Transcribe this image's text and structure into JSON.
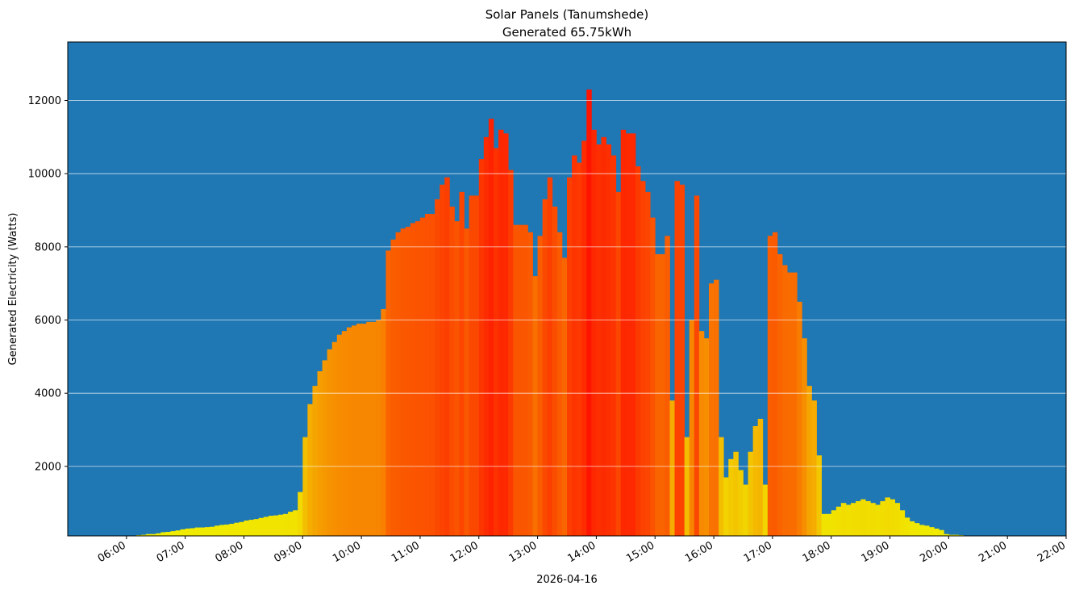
{
  "chart_data": {
    "type": "bar",
    "title": "Solar Panels (Tanumshede)",
    "subtitle": "Generated 65.75kWh",
    "y_label": "Generated Electricity (Watts)",
    "x_label": "2026-04-16",
    "background": "#1f77b4",
    "colormap": [
      "#f0f000",
      "#ff1400"
    ],
    "grid": true,
    "xlim": [
      "05:00",
      "22:00"
    ],
    "xticks": [
      "06:00",
      "07:00",
      "08:00",
      "09:00",
      "10:00",
      "11:00",
      "12:00",
      "13:00",
      "14:00",
      "15:00",
      "16:00",
      "17:00",
      "18:00",
      "19:00",
      "20:00",
      "21:00",
      "22:00"
    ],
    "ylim": [
      100,
      13600
    ],
    "yticks": [
      2000,
      4000,
      6000,
      8000,
      10000,
      12000
    ],
    "x": [
      "05:45",
      "05:50",
      "05:55",
      "06:00",
      "06:05",
      "06:10",
      "06:15",
      "06:20",
      "06:25",
      "06:30",
      "06:35",
      "06:40",
      "06:45",
      "06:50",
      "06:55",
      "07:00",
      "07:05",
      "07:10",
      "07:15",
      "07:20",
      "07:25",
      "07:30",
      "07:35",
      "07:40",
      "07:45",
      "07:50",
      "07:55",
      "08:00",
      "08:05",
      "08:10",
      "08:15",
      "08:20",
      "08:25",
      "08:30",
      "08:35",
      "08:40",
      "08:45",
      "08:50",
      "08:55",
      "09:00",
      "09:05",
      "09:10",
      "09:15",
      "09:20",
      "09:25",
      "09:30",
      "09:35",
      "09:40",
      "09:45",
      "09:50",
      "09:55",
      "10:00",
      "10:05",
      "10:10",
      "10:15",
      "10:20",
      "10:25",
      "10:30",
      "10:35",
      "10:40",
      "10:45",
      "10:50",
      "10:55",
      "11:00",
      "11:05",
      "11:10",
      "11:15",
      "11:20",
      "11:25",
      "11:30",
      "11:35",
      "11:40",
      "11:45",
      "11:50",
      "11:55",
      "12:00",
      "12:05",
      "12:10",
      "12:15",
      "12:20",
      "12:25",
      "12:30",
      "12:35",
      "12:40",
      "12:45",
      "12:50",
      "12:55",
      "13:00",
      "13:05",
      "13:10",
      "13:15",
      "13:20",
      "13:25",
      "13:30",
      "13:35",
      "13:40",
      "13:45",
      "13:50",
      "13:55",
      "14:00",
      "14:05",
      "14:10",
      "14:15",
      "14:20",
      "14:25",
      "14:30",
      "14:35",
      "14:40",
      "14:45",
      "14:50",
      "14:55",
      "15:00",
      "15:05",
      "15:10",
      "15:15",
      "15:20",
      "15:25",
      "15:30",
      "15:35",
      "15:40",
      "15:45",
      "15:50",
      "15:55",
      "16:00",
      "16:05",
      "16:10",
      "16:15",
      "16:20",
      "16:25",
      "16:30",
      "16:35",
      "16:40",
      "16:45",
      "16:50",
      "16:55",
      "17:00",
      "17:05",
      "17:10",
      "17:15",
      "17:20",
      "17:25",
      "17:30",
      "17:35",
      "17:40",
      "17:45",
      "17:50",
      "17:55",
      "18:00",
      "18:05",
      "18:10",
      "18:15",
      "18:20",
      "18:25",
      "18:30",
      "18:35",
      "18:40",
      "18:45",
      "18:50",
      "18:55",
      "19:00",
      "19:05",
      "19:10",
      "19:15",
      "19:20",
      "19:25",
      "19:30",
      "19:35",
      "19:40",
      "19:45",
      "19:50",
      "19:55",
      "20:00",
      "20:05",
      "20:10",
      "20:15"
    ],
    "values": [
      100,
      110,
      110,
      100,
      110,
      120,
      130,
      150,
      150,
      170,
      200,
      210,
      230,
      250,
      280,
      300,
      310,
      330,
      330,
      340,
      350,
      380,
      400,
      410,
      430,
      460,
      480,
      520,
      540,
      560,
      590,
      620,
      650,
      660,
      680,
      700,
      760,
      800,
      1300,
      2800,
      3700,
      4200,
      4600,
      4900,
      5200,
      5400,
      5600,
      5700,
      5800,
      5850,
      5900,
      5900,
      5950,
      5950,
      6000,
      6300,
      7900,
      8200,
      8400,
      8500,
      8550,
      8650,
      8700,
      8800,
      8900,
      8900,
      9300,
      9700,
      9900,
      9100,
      8700,
      9500,
      8500,
      9400,
      9400,
      10400,
      11000,
      11500,
      10700,
      11200,
      11100,
      10100,
      8600,
      8600,
      8600,
      8400,
      7200,
      8300,
      9300,
      9900,
      9100,
      8400,
      7700,
      9900,
      10500,
      10300,
      10900,
      12300,
      11200,
      10800,
      11000,
      10800,
      10500,
      9500,
      11200,
      11100,
      11100,
      10200,
      9800,
      9500,
      8800,
      7800,
      7800,
      8300,
      3800,
      9800,
      9700,
      2800,
      6000,
      9400,
      5700,
      5500,
      7000,
      7100,
      2800,
      1700,
      2200,
      2400,
      1900,
      1500,
      2400,
      3100,
      3300,
      1500,
      8300,
      8400,
      7800,
      7500,
      7300,
      7300,
      6500,
      5500,
      4200,
      3800,
      2300,
      700,
      700,
      800,
      900,
      1000,
      950,
      1000,
      1050,
      1100,
      1050,
      1000,
      950,
      1050,
      1150,
      1100,
      1000,
      800,
      600,
      500,
      450,
      400,
      380,
      340,
      300,
      260,
      150,
      130,
      130,
      120,
      100
    ]
  }
}
